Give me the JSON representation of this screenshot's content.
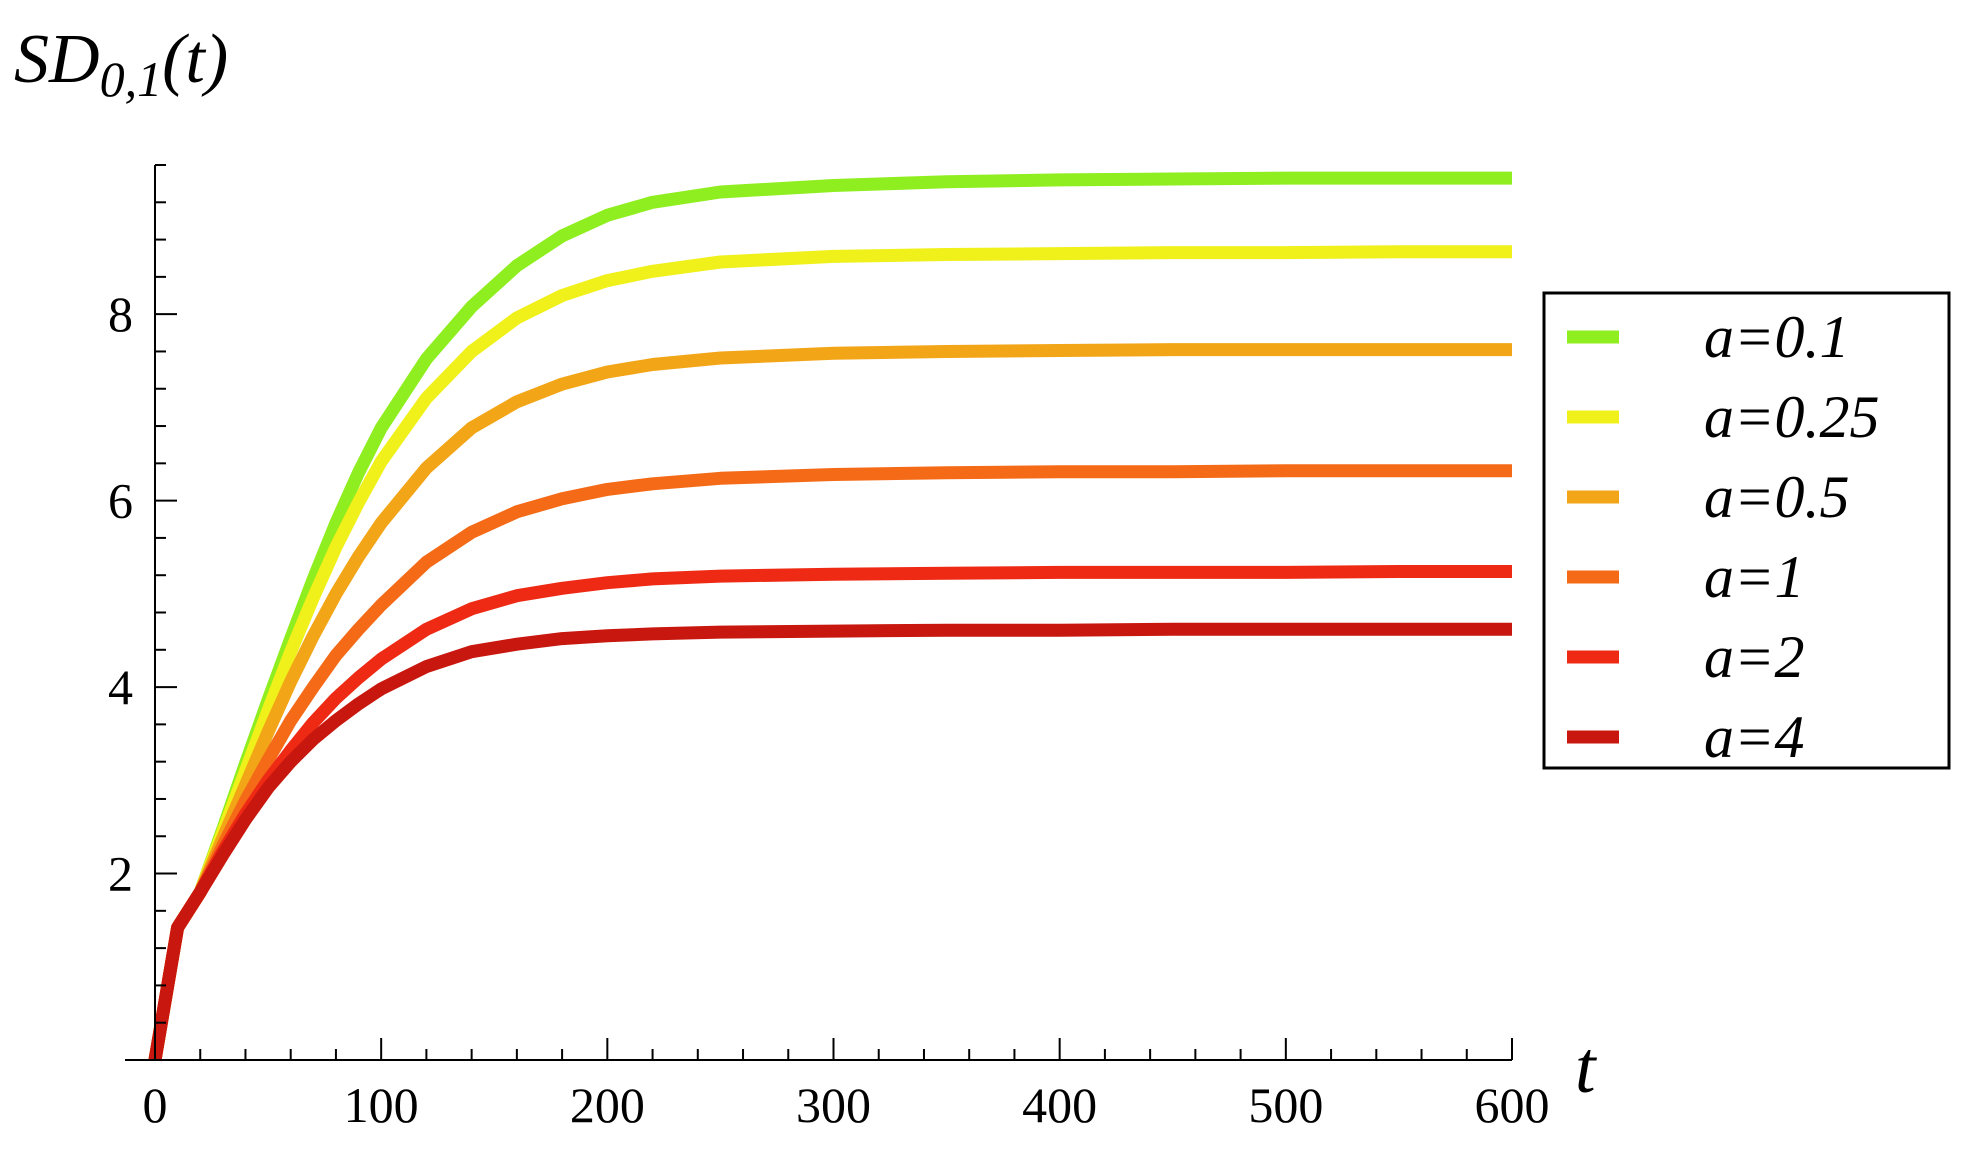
{
  "chart_data": {
    "type": "line",
    "ylabel": {
      "main": "SD",
      "sub": "0,1",
      "tail": "(t)"
    },
    "xlabel": "t",
    "xlim": [
      0,
      600
    ],
    "ylim": [
      0,
      9.6
    ],
    "x_ticks": [
      0,
      100,
      200,
      300,
      400,
      500,
      600
    ],
    "y_ticks": [
      2,
      4,
      6,
      8
    ],
    "legend_position": "right",
    "grid": false,
    "x": [
      0,
      10,
      20,
      30,
      40,
      50,
      60,
      70,
      80,
      90,
      100,
      120,
      140,
      160,
      180,
      200,
      220,
      250,
      300,
      350,
      400,
      450,
      500,
      550,
      600
    ],
    "series": [
      {
        "name": "a=0.1",
        "color": "#8fee1f",
        "values": [
          0,
          1.42,
          1.8,
          2.48,
          3.18,
          3.86,
          4.52,
          5.16,
          5.76,
          6.3,
          6.78,
          7.52,
          8.08,
          8.52,
          8.84,
          9.06,
          9.2,
          9.31,
          9.38,
          9.42,
          9.44,
          9.45,
          9.46,
          9.46,
          9.46
        ]
      },
      {
        "name": "a=0.25",
        "color": "#f0f01a",
        "values": [
          0,
          1.42,
          1.8,
          2.45,
          3.1,
          3.75,
          4.38,
          4.96,
          5.5,
          5.98,
          6.42,
          7.1,
          7.6,
          7.96,
          8.2,
          8.36,
          8.46,
          8.56,
          8.62,
          8.64,
          8.65,
          8.66,
          8.66,
          8.67,
          8.67
        ]
      },
      {
        "name": "a=0.5",
        "color": "#f2a516",
        "values": [
          0,
          1.42,
          1.8,
          2.38,
          2.95,
          3.52,
          4.06,
          4.55,
          5.0,
          5.4,
          5.76,
          6.35,
          6.78,
          7.06,
          7.25,
          7.38,
          7.46,
          7.53,
          7.58,
          7.6,
          7.61,
          7.62,
          7.62,
          7.62,
          7.62
        ]
      },
      {
        "name": "a=1",
        "color": "#f46a16",
        "values": [
          0,
          1.42,
          1.8,
          2.3,
          2.78,
          3.22,
          3.64,
          4.0,
          4.34,
          4.62,
          4.88,
          5.34,
          5.66,
          5.88,
          6.02,
          6.12,
          6.18,
          6.24,
          6.28,
          6.3,
          6.31,
          6.31,
          6.32,
          6.32,
          6.32
        ]
      },
      {
        "name": "a=2",
        "color": "#ee2a15",
        "values": [
          0,
          1.42,
          1.8,
          2.24,
          2.64,
          3.0,
          3.32,
          3.62,
          3.88,
          4.1,
          4.3,
          4.62,
          4.84,
          4.98,
          5.06,
          5.12,
          5.16,
          5.19,
          5.21,
          5.22,
          5.23,
          5.23,
          5.23,
          5.24,
          5.24
        ]
      },
      {
        "name": "a=4",
        "color": "#c8170e",
        "values": [
          0,
          1.42,
          1.8,
          2.2,
          2.58,
          2.92,
          3.2,
          3.44,
          3.64,
          3.82,
          3.98,
          4.22,
          4.38,
          4.46,
          4.52,
          4.55,
          4.57,
          4.59,
          4.6,
          4.61,
          4.61,
          4.62,
          4.62,
          4.62,
          4.62
        ]
      }
    ]
  }
}
